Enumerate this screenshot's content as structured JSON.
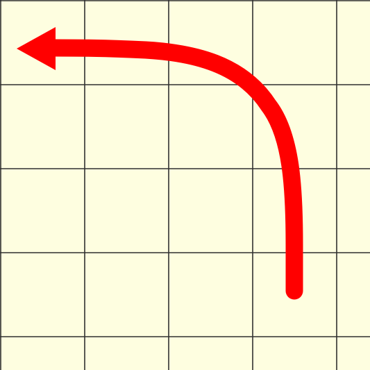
{
  "colors": {
    "background": "#fefee0",
    "grid_line": "#2f2f2f",
    "arrow": "#ff0000"
  },
  "grid": {
    "columns": 4,
    "rows": 4
  },
  "arrow": {
    "icon": "curved-arrow-left-icon",
    "direction": "up-then-left"
  }
}
